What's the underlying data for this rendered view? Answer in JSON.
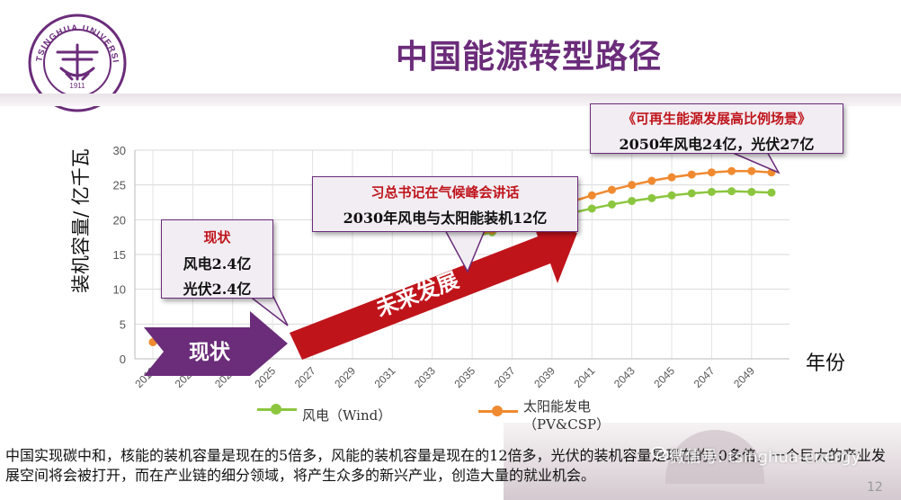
{
  "title": "中国能源转型路径",
  "logo": {
    "text_top": "TSINGHUA UNIVERSITY",
    "year": "1911"
  },
  "colors": {
    "wind": "#8cc63f",
    "solar": "#f08a30",
    "accent": "#6b2c7a",
    "red": "#c0141b"
  },
  "chart_data": {
    "type": "line",
    "x": [
      2019,
      2020,
      2021,
      2022,
      2023,
      2024,
      2025,
      2026,
      2027,
      2028,
      2029,
      2030,
      2031,
      2032,
      2033,
      2034,
      2035,
      2036,
      2037,
      2038,
      2039,
      2040,
      2041,
      2042,
      2043,
      2044,
      2045,
      2046,
      2047,
      2048,
      2049,
      2050
    ],
    "x_tick_labels": [
      "2019",
      "2021",
      "2023",
      "2025",
      "2027",
      "2029",
      "2031",
      "2033",
      "2035",
      "2037",
      "2039",
      "2041",
      "2043",
      "2045",
      "2047",
      "2049"
    ],
    "ylabel": "装机容量/ 亿千瓦",
    "xlabel": "年份",
    "ylim": [
      0,
      30
    ],
    "y_ticks": [
      "0",
      "5",
      "10",
      "15",
      "20",
      "25",
      "30"
    ],
    "grid": true,
    "legend_position": "bottom",
    "series": [
      {
        "name": "风电（Wind）",
        "color": "#8cc63f",
        "values": [
          2.4,
          null,
          null,
          null,
          null,
          null,
          null,
          null,
          null,
          null,
          null,
          null,
          null,
          null,
          null,
          null,
          17.5,
          18.2,
          18.9,
          19.6,
          20.3,
          21.0,
          21.6,
          22.2,
          22.7,
          23.1,
          23.5,
          23.8,
          24.0,
          24.1,
          24.0,
          23.9
        ]
      },
      {
        "name": "太阳能发电（PV&CSP）",
        "color": "#f08a30",
        "values": [
          2.4,
          null,
          null,
          null,
          null,
          null,
          null,
          null,
          null,
          null,
          null,
          null,
          null,
          null,
          null,
          null,
          17.6,
          18.5,
          19.5,
          20.6,
          21.6,
          22.6,
          23.5,
          24.3,
          25.0,
          25.6,
          26.1,
          26.5,
          26.8,
          27.0,
          27.0,
          26.8
        ]
      }
    ]
  },
  "legend": {
    "wind": "风电（Wind）",
    "solar_line1": "太阳能发电",
    "solar_line2": "（PV&CSP）"
  },
  "arrows": {
    "current": "现状",
    "future": "未来发展"
  },
  "callouts": {
    "current": {
      "heading": "现状",
      "line1": "风电2.4亿",
      "line2": "光伏2.4亿"
    },
    "mid": {
      "heading": "习总书记在气候峰会讲话",
      "line1": "2030年风电与太阳能装机12亿"
    },
    "future": {
      "heading": "《可再生能源发展高比例场景》",
      "line1": "2050年风电24亿，光伏27亿"
    }
  },
  "body_text": "中国实现碳中和，核能的装机容量是现在的5倍多，风能的装机容量是现在的12倍多，光伏的装机容量是现在的10多倍，一个巨大的产业发展空间将会被打开，而在产业链的细分领域，将产生众多的新兴产业，创造大量的就业机会。",
  "watermark": "微信号: tsinghua-energy",
  "page_number": "12"
}
